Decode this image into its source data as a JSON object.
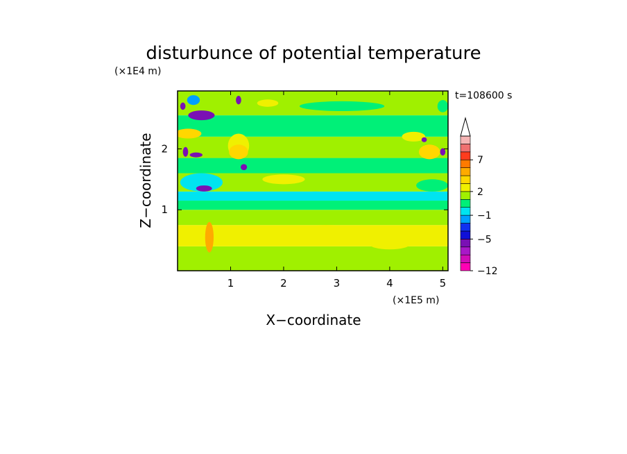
{
  "chart_data": {
    "type": "heatmap",
    "title": "disturbunce of potential temperature",
    "xlabel": "X−coordinate",
    "ylabel": "Z−coordinate",
    "x_unit": "(×1E5 m)",
    "y_unit": "(×1E4 m)",
    "time_label": "t=108600 s",
    "xlim": [
      0,
      5.1
    ],
    "ylim": [
      0,
      2.95
    ],
    "x_ticks": [
      {
        "value": 1,
        "label": "1"
      },
      {
        "value": 2,
        "label": "2"
      },
      {
        "value": 3,
        "label": "3"
      },
      {
        "value": 4,
        "label": "4"
      },
      {
        "value": 5,
        "label": "5"
      }
    ],
    "y_ticks": [
      {
        "value": 1,
        "label": "1"
      },
      {
        "value": 2,
        "label": "2"
      }
    ],
    "colorbar": {
      "levels": [
        -12,
        -10,
        -8,
        -6,
        -5,
        -4,
        -3,
        -1,
        0,
        1,
        2,
        3,
        5,
        6,
        7,
        8,
        9
      ],
      "colors": [
        "#ff00b4",
        "#d00cb8",
        "#a818c8",
        "#7a10b4",
        "#1010d8",
        "#1030f0",
        "#00a0ff",
        "#00e4f0",
        "#00f078",
        "#a0f000",
        "#f0f000",
        "#ffd700",
        "#ffaa00",
        "#ff7a00",
        "#ff3c1e",
        "#f07070",
        "#f5b4b4"
      ],
      "extend_top": true,
      "tick_labels": [
        "7",
        "2",
        "−1",
        "−5",
        "−12"
      ]
    },
    "bands": [
      {
        "z": [
          0.0,
          0.4
        ],
        "value": 1.5
      },
      {
        "z": [
          0.4,
          0.75
        ],
        "value": 2.5
      },
      {
        "z": [
          0.75,
          1.0
        ],
        "value": 1.5
      },
      {
        "z": [
          1.0,
          1.15
        ],
        "value": 0.5
      },
      {
        "z": [
          1.15,
          1.3
        ],
        "value": -0.5
      },
      {
        "z": [
          1.3,
          1.6
        ],
        "value": 1.5
      },
      {
        "z": [
          1.6,
          1.85
        ],
        "value": 0.5
      },
      {
        "z": [
          1.85,
          2.2
        ],
        "value": 1.5
      },
      {
        "z": [
          2.2,
          2.55
        ],
        "value": 0.5
      },
      {
        "z": [
          2.55,
          2.95
        ],
        "value": 1.5
      }
    ],
    "features": [
      {
        "x": 0.6,
        "z": 0.55,
        "rx": 0.08,
        "rz": 0.25,
        "value": 5.5
      },
      {
        "x": 0.45,
        "z": 2.55,
        "rx": 0.25,
        "rz": 0.08,
        "value": -5.5
      },
      {
        "x": 0.3,
        "z": 2.8,
        "rx": 0.12,
        "rz": 0.08,
        "value": -1.5
      },
      {
        "x": 0.2,
        "z": 2.25,
        "rx": 0.25,
        "rz": 0.08,
        "value": 3.5
      },
      {
        "x": 1.15,
        "z": 1.95,
        "rx": 0.18,
        "rz": 0.12,
        "value": 3.5
      },
      {
        "x": 1.25,
        "z": 1.7,
        "rx": 0.06,
        "rz": 0.05,
        "value": -5.5
      },
      {
        "x": 1.15,
        "z": 2.05,
        "rx": 0.2,
        "rz": 0.2,
        "value": 2.5
      },
      {
        "x": 0.5,
        "z": 1.35,
        "rx": 0.15,
        "rz": 0.05,
        "value": -5.5
      },
      {
        "x": 0.45,
        "z": 1.45,
        "rx": 0.4,
        "rz": 0.15,
        "value": -0.5
      },
      {
        "x": 0.35,
        "z": 1.9,
        "rx": 0.12,
        "rz": 0.04,
        "value": -5.5
      },
      {
        "x": 0.15,
        "z": 1.95,
        "rx": 0.05,
        "rz": 0.08,
        "value": -5.5
      },
      {
        "x": 0.1,
        "z": 2.7,
        "rx": 0.05,
        "rz": 0.06,
        "value": -5.5
      },
      {
        "x": 1.15,
        "z": 2.8,
        "rx": 0.05,
        "rz": 0.07,
        "value": -5.5
      },
      {
        "x": 4.75,
        "z": 1.95,
        "rx": 0.2,
        "rz": 0.12,
        "value": 3.5
      },
      {
        "x": 4.65,
        "z": 2.15,
        "rx": 0.05,
        "rz": 0.04,
        "value": -5.5
      },
      {
        "x": 5.0,
        "z": 1.95,
        "rx": 0.05,
        "rz": 0.06,
        "value": -5.5
      },
      {
        "x": 4.45,
        "z": 2.2,
        "rx": 0.22,
        "rz": 0.08,
        "value": 2.5
      },
      {
        "x": 5.0,
        "z": 2.7,
        "rx": 0.1,
        "rz": 0.1,
        "value": 0.5
      },
      {
        "x": 4.8,
        "z": 1.4,
        "rx": 0.3,
        "rz": 0.1,
        "value": 0.5
      },
      {
        "x": 2.0,
        "z": 1.5,
        "rx": 0.4,
        "rz": 0.08,
        "value": 2.5
      },
      {
        "x": 4.0,
        "z": 0.45,
        "rx": 0.4,
        "rz": 0.1,
        "value": 2.5
      },
      {
        "x": 2.8,
        "z": 0.65,
        "rx": 0.7,
        "rz": 0.1,
        "value": 2.5
      },
      {
        "x": 1.7,
        "z": 2.75,
        "rx": 0.2,
        "rz": 0.06,
        "value": 2.5
      },
      {
        "x": 3.1,
        "z": 2.7,
        "rx": 0.8,
        "rz": 0.08,
        "value": 0.5
      },
      {
        "x": 2.6,
        "z": 1.25,
        "rx": 0.4,
        "rz": 0.05,
        "value": -0.5
      }
    ]
  }
}
